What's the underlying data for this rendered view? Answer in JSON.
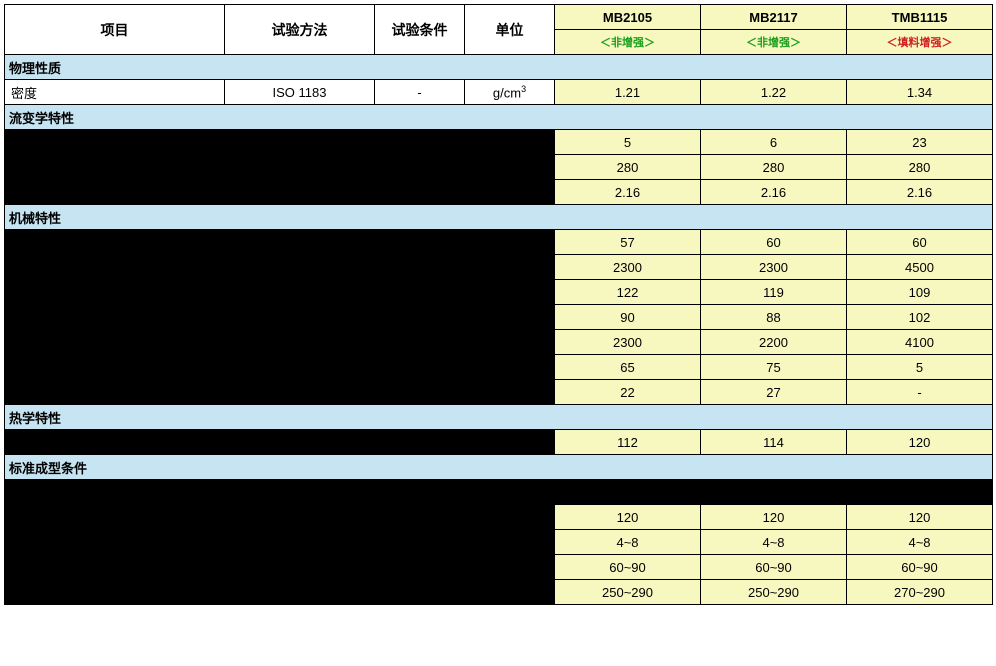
{
  "headers": {
    "item": "项目",
    "method": "试验方法",
    "cond": "试验条件",
    "unit": "单位",
    "col1_top": "MB2105",
    "col1_sub": "＜非增强＞",
    "col2_top": "MB2117",
    "col2_sub": "＜非增强＞",
    "col3_top": "TMB1115",
    "col3_sub": "＜填料增强＞"
  },
  "sections": {
    "s1": "物理性质",
    "s2": "流变学特性",
    "s3": "机械特性",
    "s4": "热学特性",
    "s5": "标准成型条件"
  },
  "rows": {
    "density": {
      "item": "密度",
      "method": "ISO 1183",
      "cond": "-",
      "unit_html": "g/cm<sup>3</sup>",
      "v1": "1.21",
      "v2": "1.22",
      "v3": "1.34"
    },
    "rheo1": {
      "v1": "5",
      "v2": "6",
      "v3": "23"
    },
    "rheo2": {
      "v1": "280",
      "v2": "280",
      "v3": "280"
    },
    "rheo3": {
      "v1": "2.16",
      "v2": "2.16",
      "v3": "2.16"
    },
    "mech1": {
      "v1": "57",
      "v2": "60",
      "v3": "60"
    },
    "mech2": {
      "v1": "2300",
      "v2": "2300",
      "v3": "4500"
    },
    "mech3": {
      "v1": "122",
      "v2": "119",
      "v3": "109"
    },
    "mech4": {
      "v1": "90",
      "v2": "88",
      "v3": "102"
    },
    "mech5": {
      "v1": "2300",
      "v2": "2200",
      "v3": "4100"
    },
    "mech6": {
      "v1": "65",
      "v2": "75",
      "v3": "5"
    },
    "mech7": {
      "v1": "22",
      "v2": "27",
      "v3": "-"
    },
    "therm1": {
      "v1": "112",
      "v2": "114",
      "v3": "120"
    },
    "mold1": {
      "v1": "120",
      "v2": "120",
      "v3": "120"
    },
    "mold2": {
      "v1": "4~8",
      "v2": "4~8",
      "v3": "4~8"
    },
    "mold3": {
      "v1": "60~90",
      "v2": "60~90",
      "v3": "60~90"
    },
    "mold4": {
      "v1": "250~290",
      "v2": "250~290",
      "v3": "270~290"
    }
  },
  "colors": {
    "yellow": "#f7f7c0",
    "blue": "#c7e4f2",
    "black": "#000000",
    "green": "#1aa01a",
    "red": "#d02020"
  }
}
